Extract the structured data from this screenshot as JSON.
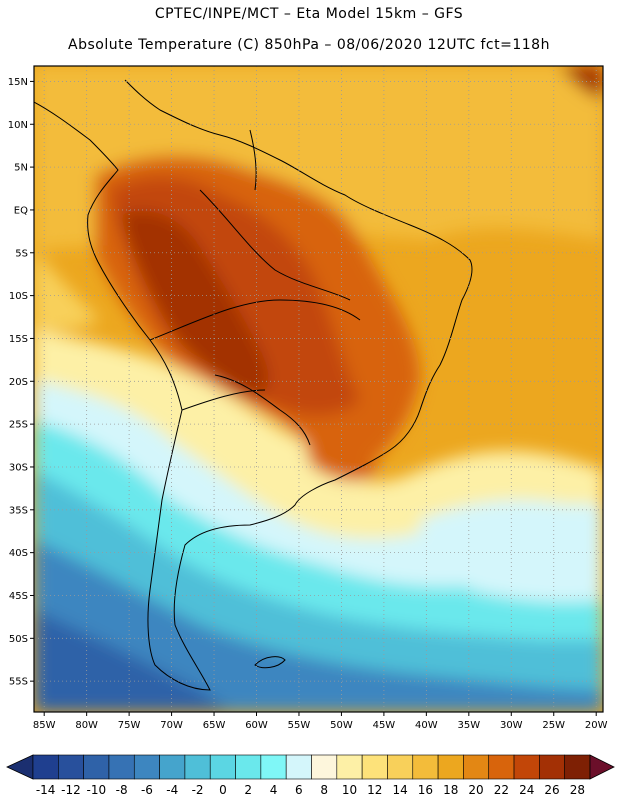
{
  "header": {
    "line1": "CPTEC/INPE/MCT –  Eta Model 15km – GFS",
    "line2": "Absolute Temperature (C) 850hPa – 08/06/2020 12UTC fct=118h"
  },
  "map": {
    "lat_labels": [
      "15N",
      "10N",
      "5N",
      "EQ",
      "5S",
      "10S",
      "15S",
      "20S",
      "25S",
      "30S",
      "35S",
      "40S",
      "45S",
      "50S",
      "55S"
    ],
    "lon_labels": [
      "85W",
      "80W",
      "75W",
      "70W",
      "65W",
      "60W",
      "55W",
      "50W",
      "45W",
      "40W",
      "35W",
      "30W",
      "25W",
      "20W"
    ],
    "lat_values": [
      15,
      10,
      5,
      0,
      -5,
      -10,
      -15,
      -20,
      -25,
      -30,
      -35,
      -40,
      -45,
      -50,
      -55
    ],
    "lon_values": [
      -85,
      -80,
      -75,
      -70,
      -65,
      -60,
      -55,
      -50,
      -45,
      -40,
      -35,
      -30,
      -25,
      -20
    ],
    "extent": {
      "lon_min": -86.2,
      "lon_max": -19.2,
      "lat_min": -58.6,
      "lat_max": 16.8
    }
  },
  "colorbar": {
    "labels": [
      "-14",
      "-12",
      "-10",
      "-8",
      "-6",
      "-4",
      "-2",
      "0",
      "2",
      "4",
      "6",
      "8",
      "10",
      "12",
      "14",
      "16",
      "18",
      "20",
      "22",
      "24",
      "26",
      "28"
    ],
    "colors": [
      "#1f3f8f",
      "#28509c",
      "#2f62a8",
      "#3672b4",
      "#3d86c0",
      "#45a4cc",
      "#4fbfd8",
      "#5bd6e3",
      "#6ae8ec",
      "#7ff7f7",
      "#d4f6fb",
      "#fdf6dc",
      "#fdf0a6",
      "#fde27a",
      "#f8d05a",
      "#f3bc3a",
      "#eca71f",
      "#e38714",
      "#d8640c",
      "#c24608",
      "#a33005",
      "#7e2004"
    ],
    "out_low_color": "#1b2f70",
    "out_high_color": "#6b0f2a"
  }
}
